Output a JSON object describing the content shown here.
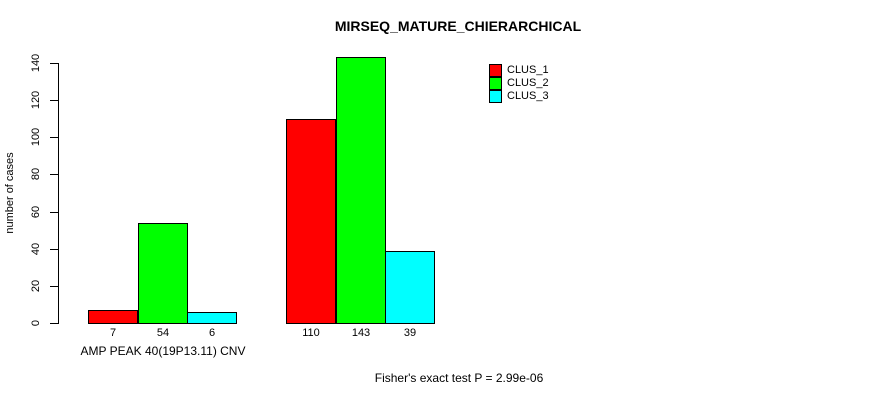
{
  "chart_data": {
    "type": "bar",
    "title": "MIRSEQ_MATURE_CHIERARCHICAL",
    "ylabel": "number of cases",
    "xlabel": "AMP PEAK 40(19P13.11) CNV",
    "footnote": "Fisher's exact test P = 2.99e-06",
    "ylim": [
      0,
      140
    ],
    "yticks": [
      0,
      20,
      40,
      60,
      80,
      100,
      120,
      140
    ],
    "categories": [
      "",
      ""
    ],
    "series": [
      {
        "name": "CLUS_1",
        "color": "#FF0000",
        "values": [
          7,
          110
        ]
      },
      {
        "name": "CLUS_2",
        "color": "#00FF00",
        "values": [
          54,
          143
        ]
      },
      {
        "name": "CLUS_3",
        "color": "#00FFFF",
        "values": [
          6,
          39
        ]
      }
    ],
    "bar_value_labels": [
      [
        7,
        54,
        6
      ],
      [
        110,
        143,
        39
      ]
    ],
    "legend": {
      "position": "top-right",
      "entries": [
        "CLUS_1",
        "CLUS_2",
        "CLUS_3"
      ]
    },
    "grid": false,
    "background": "#FFFFFF",
    "axis_color": "#000000"
  }
}
